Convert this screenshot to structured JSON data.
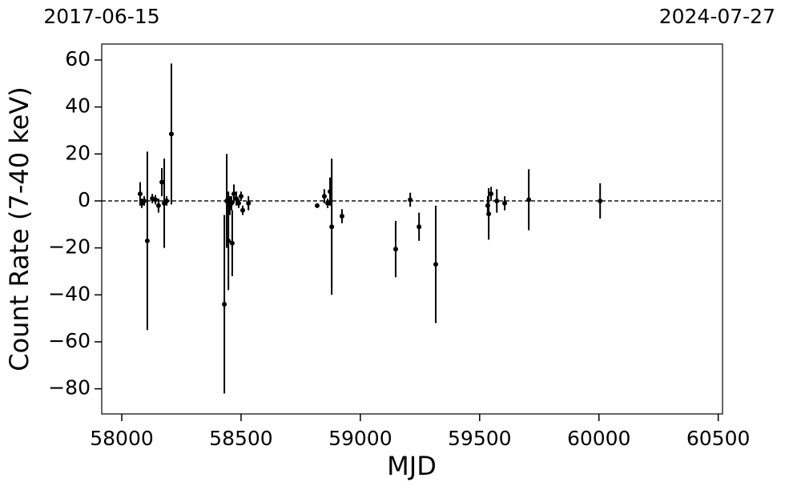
{
  "chart_data": {
    "type": "errorbar",
    "xlabel": "MJD",
    "ylabel": "Count Rate (7-40 keV)",
    "xlim": [
      57916,
      60518
    ],
    "ylim": [
      -90.7,
      66.8
    ],
    "xticks": [
      58000,
      58500,
      59000,
      59500,
      60000,
      60500
    ],
    "yticks": [
      {
        "value": -80,
        "label": "−80"
      },
      {
        "value": -60,
        "label": "−60"
      },
      {
        "value": -40,
        "label": "−40"
      },
      {
        "value": -20,
        "label": "−20"
      },
      0,
      20,
      40,
      60
    ],
    "x2ticks": [
      {
        "value": 57916,
        "label": "2017-06-15"
      },
      {
        "value": 60518,
        "label": "2024-07-27"
      }
    ],
    "hline": 0,
    "series": [
      {
        "color": "#000000",
        "x": [
          58077,
          58084,
          58094,
          58107,
          58128,
          58141,
          58154,
          58168,
          58178,
          58188,
          58208,
          58430,
          58440,
          58447,
          58453,
          58460,
          58463,
          58470,
          58480,
          58490,
          58500,
          58507,
          58531,
          58819,
          58849,
          58863,
          58873,
          58880,
          58923,
          59148,
          59209,
          59246,
          59316,
          59534,
          59538,
          59548,
          59572,
          59605,
          59706,
          60005
        ],
        "values": [
          3,
          -1,
          0,
          -17,
          1,
          0.5,
          -2,
          8,
          -1,
          0,
          28.5,
          -44,
          0,
          -17,
          -2,
          -1,
          -18,
          3,
          1,
          -1,
          2,
          -4,
          -1,
          -2,
          2,
          -1,
          4,
          -11,
          -6.5,
          -20.5,
          0.5,
          -11,
          -27,
          -2,
          -5.5,
          3,
          0,
          -1,
          0.5,
          0
        ],
        "errors": [
          5,
          2,
          2,
          38,
          2,
          2,
          3,
          6,
          19,
          2,
          30,
          38,
          20,
          21,
          4,
          3,
          14,
          4,
          3,
          2,
          2,
          2,
          3,
          1,
          3,
          2,
          6,
          29,
          3,
          12,
          3,
          6,
          25,
          4,
          11,
          3,
          5,
          3,
          13,
          7.5
        ]
      }
    ]
  }
}
